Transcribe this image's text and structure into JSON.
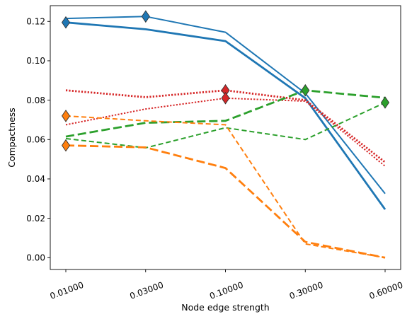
{
  "chart_data": {
    "type": "line",
    "title": "",
    "xlabel": "Node edge strength",
    "ylabel": "Compactness",
    "categories": [
      "0.01000",
      "0.03000",
      "0.10000",
      "0.30000",
      "0.60000"
    ],
    "ylim": [
      -0.006,
      0.128
    ],
    "yticks": [
      "0.00",
      "0.02",
      "0.04",
      "0.06",
      "0.08",
      "0.10",
      "0.12"
    ],
    "grid": false,
    "legend": "none",
    "series": [
      {
        "color": "#1f77b4",
        "dash": "solid",
        "width": 2.0,
        "values": [
          0.1215,
          0.1225,
          0.1145,
          0.0835,
          0.0325
        ]
      },
      {
        "color": "#1f77b4",
        "dash": "solid",
        "width": 2.8,
        "values": [
          0.1195,
          0.116,
          0.11,
          0.081,
          0.0245
        ]
      },
      {
        "color": "#d62728",
        "dash": "dotted",
        "width": 2.0,
        "values": [
          0.0675,
          0.0755,
          0.081,
          0.0795,
          0.0465
        ]
      },
      {
        "color": "#d62728",
        "dash": "dotted",
        "width": 2.8,
        "values": [
          0.085,
          0.0815,
          0.085,
          0.08,
          0.0485
        ]
      },
      {
        "color": "#2ca02c",
        "dash": "dashed",
        "width": 2.0,
        "values": [
          0.0605,
          0.0558,
          0.066,
          0.06,
          0.0788
        ]
      },
      {
        "color": "#2ca02c",
        "dash": "longdash",
        "width": 2.8,
        "values": [
          0.0615,
          0.0685,
          0.0695,
          0.085,
          0.0812
        ]
      },
      {
        "color": "#ff7f0e",
        "dash": "dashed",
        "width": 2.0,
        "values": [
          0.072,
          0.0695,
          0.0675,
          0.007,
          0.0
        ]
      },
      {
        "color": "#ff7f0e",
        "dash": "longdash",
        "width": 2.8,
        "values": [
          0.057,
          0.056,
          0.0455,
          0.008,
          0.0
        ]
      }
    ],
    "markers": [
      {
        "x": "0.01000",
        "y": 0.1195,
        "color": "#1f77b4"
      },
      {
        "x": "0.03000",
        "y": 0.1225,
        "color": "#1f77b4"
      },
      {
        "x": "0.01000",
        "y": 0.072,
        "color": "#ff7f0e"
      },
      {
        "x": "0.01000",
        "y": 0.057,
        "color": "#ff7f0e"
      },
      {
        "x": "0.10000",
        "y": 0.085,
        "color": "#d62728"
      },
      {
        "x": "0.10000",
        "y": 0.081,
        "color": "#d62728"
      },
      {
        "x": "0.30000",
        "y": 0.085,
        "color": "#2ca02c"
      },
      {
        "x": "0.60000",
        "y": 0.0788,
        "color": "#2ca02c"
      }
    ]
  }
}
